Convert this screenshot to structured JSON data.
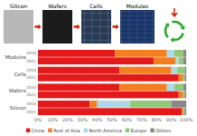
{
  "chart_data": {
    "type": "bar",
    "orientation": "horizontal",
    "stacked": true,
    "annotations": [
      "Silicon",
      "Wafers",
      "Cells",
      "Modules"
    ],
    "categories": [
      "Silicon",
      "Wafers",
      "Cells",
      "Modules"
    ],
    "subcategories": [
      "2010",
      "2021"
    ],
    "series": [
      {
        "name": "China",
        "color": "#e31a1c",
        "values": [
          [
            35,
            97
          ],
          [
            55,
            95
          ],
          [
            55,
            95
          ],
          [
            52,
            78
          ]
        ]
      },
      {
        "name": "Rest of Asia",
        "color": "#f47e20",
        "values": [
          [
            5,
            1
          ],
          [
            32,
            3
          ],
          [
            35,
            3
          ],
          [
            35,
            15
          ]
        ]
      },
      {
        "name": "North America",
        "color": "#add8e6",
        "values": [
          [
            22,
            0
          ],
          [
            5,
            0
          ],
          [
            4,
            0
          ],
          [
            5,
            2
          ]
        ]
      },
      {
        "name": "Europe",
        "color": "#90c97a",
        "values": [
          [
            28,
            1
          ],
          [
            6,
            1
          ],
          [
            5,
            1
          ],
          [
            6,
            3
          ]
        ]
      },
      {
        "name": "Others",
        "color": "#888888",
        "values": [
          [
            10,
            1
          ],
          [
            2,
            1
          ],
          [
            1,
            1
          ],
          [
            2,
            2
          ]
        ]
      }
    ],
    "xlim": [
      0,
      100
    ],
    "xticks": [
      {
        "value": 0,
        "label": "0%"
      },
      {
        "value": 10,
        "label": "10%"
      },
      {
        "value": 20,
        "label": "20%"
      },
      {
        "value": 30,
        "label": "30%"
      },
      {
        "value": 40,
        "label": "40%"
      },
      {
        "value": 50,
        "label": "50%"
      },
      {
        "value": 60,
        "label": "60%"
      },
      {
        "value": 70,
        "label": "70%"
      },
      {
        "value": 80,
        "label": "80%"
      },
      {
        "value": 90,
        "label": "90%"
      },
      {
        "value": 100,
        "label": "100%"
      }
    ],
    "grid": true,
    "legend": "bottom"
  }
}
